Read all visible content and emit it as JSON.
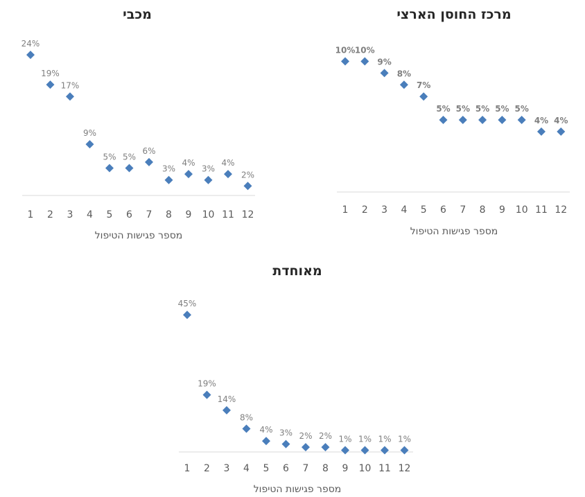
{
  "chart_data": [
    {
      "type": "scatter",
      "title": "מכבי",
      "xlabel": "מספר פגישות הטיפול",
      "ylabel": "",
      "categories": [
        "1",
        "2",
        "3",
        "4",
        "5",
        "6",
        "7",
        "8",
        "9",
        "10",
        "11",
        "12"
      ],
      "values": [
        24,
        19,
        17,
        9,
        5,
        5,
        6,
        3,
        4,
        3,
        4,
        2
      ],
      "labels": [
        "24%",
        "19%",
        "17%",
        "9%",
        "5%",
        "5%",
        "6%",
        "3%",
        "4%",
        "3%",
        "4%",
        "2%"
      ],
      "ylim": [
        0,
        28
      ],
      "grid": false,
      "legend": "none",
      "bold_labels": false,
      "marker": "diamond",
      "color": "#4a7ebb"
    },
    {
      "type": "scatter",
      "title": "מרכז החוסן הארצי",
      "xlabel": "מספר פגישות הטיפול",
      "ylabel": "",
      "categories": [
        "1",
        "2",
        "3",
        "4",
        "5",
        "6",
        "7",
        "8",
        "9",
        "10",
        "11",
        "12"
      ],
      "values": [
        10,
        10,
        9,
        8,
        7,
        5,
        5,
        5,
        5,
        5,
        4,
        4
      ],
      "labels": [
        "10%",
        "10%",
        "9%",
        "8%",
        "7%",
        "5%",
        "5%",
        "5%",
        "5%",
        "5%",
        "4%",
        "4%"
      ],
      "ylim": [
        0,
        12
      ],
      "grid": false,
      "legend": "none",
      "bold_labels": true,
      "marker": "diamond",
      "color": "#4a7ebb"
    },
    {
      "type": "scatter",
      "title": "מאוחדת",
      "xlabel": "מספר פגישות הטיפול",
      "ylabel": "",
      "categories": [
        "1",
        "2",
        "3",
        "4",
        "5",
        "6",
        "7",
        "8",
        "9",
        "10",
        "11",
        "12"
      ],
      "values": [
        45,
        19,
        14,
        8,
        4,
        3,
        2,
        2,
        1,
        1,
        1,
        1
      ],
      "labels": [
        "45%",
        "19%",
        "14%",
        "8%",
        "4%",
        "3%",
        "2%",
        "2%",
        "1%",
        "1%",
        "1%",
        "1%"
      ],
      "ylim": [
        0,
        48
      ],
      "grid": false,
      "legend": "none",
      "bold_labels": false,
      "marker": "diamond",
      "color": "#4a7ebb"
    }
  ]
}
